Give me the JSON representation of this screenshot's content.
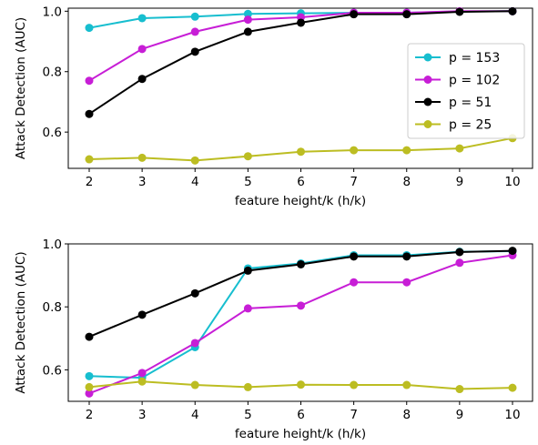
{
  "chart_data": [
    {
      "type": "line",
      "x": [
        2,
        3,
        4,
        5,
        6,
        7,
        8,
        9,
        10
      ],
      "xticks": [
        "2",
        "3",
        "4",
        "5",
        "6",
        "7",
        "8",
        "9",
        "10"
      ],
      "yticks": [
        "0.6",
        "0.8",
        "1.0"
      ],
      "xlabel": "feature height/k (h/k)",
      "ylabel": "Attack Detection (AUC)",
      "xlim": [
        2,
        10
      ],
      "ylim": [
        0.48,
        1.01
      ],
      "grid": false,
      "legend": "center-right",
      "series": [
        {
          "name": "p = 153",
          "color": "#17becf",
          "values": [
            0.945,
            0.977,
            0.982,
            0.991,
            0.993,
            0.995,
            0.995,
            0.999,
            1.0
          ]
        },
        {
          "name": "p = 102",
          "color": "#c71ed6",
          "values": [
            0.77,
            0.875,
            0.932,
            0.972,
            0.98,
            0.995,
            0.995,
            1.0,
            1.0
          ]
        },
        {
          "name": "p = 51",
          "color": "#000000",
          "values": [
            0.66,
            0.776,
            0.866,
            0.932,
            0.962,
            0.99,
            0.99,
            0.998,
            1.0
          ]
        },
        {
          "name": "p = 25",
          "color": "#bcbd22",
          "values": [
            0.51,
            0.515,
            0.506,
            0.52,
            0.535,
            0.54,
            0.54,
            0.546,
            0.58
          ]
        }
      ]
    },
    {
      "type": "line",
      "x": [
        2,
        3,
        4,
        5,
        6,
        7,
        8,
        9,
        10
      ],
      "xticks": [
        "2",
        "3",
        "4",
        "5",
        "6",
        "7",
        "8",
        "9",
        "10"
      ],
      "yticks": [
        "0.6",
        "0.8",
        "1.0"
      ],
      "xlabel": "feature height/k (h/k)",
      "ylabel": "Attack Detection (AUC)",
      "xlim": [
        2,
        10
      ],
      "ylim": [
        0.5,
        1.0
      ],
      "grid": false,
      "series": [
        {
          "color": "#17becf",
          "values": [
            0.58,
            0.575,
            0.672,
            0.922,
            0.938,
            0.964,
            0.964,
            0.975,
            0.977
          ]
        },
        {
          "color": "#c71ed6",
          "values": [
            0.525,
            0.59,
            0.685,
            0.795,
            0.804,
            0.878,
            0.878,
            0.94,
            0.964
          ]
        },
        {
          "color": "#000000",
          "values": [
            0.705,
            0.775,
            0.843,
            0.915,
            0.935,
            0.96,
            0.96,
            0.974,
            0.978
          ]
        },
        {
          "color": "#bcbd22",
          "values": [
            0.545,
            0.563,
            0.552,
            0.545,
            0.553,
            0.552,
            0.552,
            0.539,
            0.543
          ]
        }
      ]
    }
  ]
}
